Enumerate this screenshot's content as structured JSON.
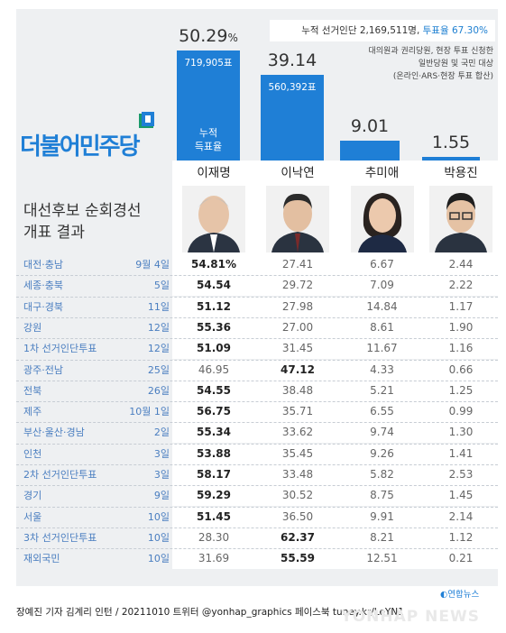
{
  "header": {
    "cumulative_voters_label": "누적 선거인단",
    "cumulative_voters_value": "2,169,511명,",
    "turnout": "투표율 67.30%",
    "note_lines": [
      "대의원과 권리당원, 현장 투표 신청한",
      "일반당원 및 국민 대상",
      "(온라인·ARS·현장 투표 합산)"
    ],
    "party_logo": "더불어민주당",
    "title_line1": "대선후보 순회경선",
    "title_line2": "개표 결과",
    "cumulative_label_1": "누적",
    "cumulative_label_2": "득표율"
  },
  "colors": {
    "accent": "#1f7fd6",
    "panel": "#eef0f2",
    "region_text": "#4a7ec0"
  },
  "chart_data": {
    "type": "bar",
    "categories": [
      "이재명",
      "이낙연",
      "추미애",
      "박용진"
    ],
    "values": [
      50.29,
      39.14,
      9.01,
      1.55
    ],
    "value_labels": [
      "50.29",
      "39.14",
      "9.01",
      "1.55"
    ],
    "pct_sign": "%",
    "votes": [
      "719,905표",
      "560,392표",
      "",
      ""
    ],
    "ylim": [
      0,
      50.29
    ]
  },
  "table": {
    "rows": [
      {
        "region": "대전·충남",
        "date": "9월 4일",
        "values": [
          "54.81%",
          "27.41",
          "6.67",
          "2.44"
        ]
      },
      {
        "region": "세종·충북",
        "date": "5일",
        "values": [
          "54.54",
          "29.72",
          "7.09",
          "2.22"
        ]
      },
      {
        "region": "대구·경북",
        "date": "11일",
        "values": [
          "51.12",
          "27.98",
          "14.84",
          "1.17"
        ]
      },
      {
        "region": "강원",
        "date": "12일",
        "values": [
          "55.36",
          "27.00",
          "8.61",
          "1.90"
        ]
      },
      {
        "region": "1차 선거인단투표",
        "date": "12일",
        "values": [
          "51.09",
          "31.45",
          "11.67",
          "1.16"
        ]
      },
      {
        "region": "광주·전남",
        "date": "25일",
        "values": [
          "46.95",
          "47.12",
          "4.33",
          "0.66"
        ]
      },
      {
        "region": "전북",
        "date": "26일",
        "values": [
          "54.55",
          "38.48",
          "5.21",
          "1.25"
        ]
      },
      {
        "region": "제주",
        "date": "10월 1일",
        "values": [
          "56.75",
          "35.71",
          "6.55",
          "0.99"
        ]
      },
      {
        "region": "부산·울산·경남",
        "date": "2일",
        "values": [
          "55.34",
          "33.62",
          "9.74",
          "1.30"
        ]
      },
      {
        "region": "인천",
        "date": "3일",
        "values": [
          "53.88",
          "35.45",
          "9.26",
          "1.41"
        ]
      },
      {
        "region": "2차 선거인단투표",
        "date": "3일",
        "values": [
          "58.17",
          "33.48",
          "5.82",
          "2.53"
        ]
      },
      {
        "region": "경기",
        "date": "9일",
        "values": [
          "59.29",
          "30.52",
          "8.75",
          "1.45"
        ]
      },
      {
        "region": "서울",
        "date": "10일",
        "values": [
          "51.45",
          "36.50",
          "9.91",
          "2.14"
        ]
      },
      {
        "region": "3차 선거인단투표",
        "date": "10일",
        "values": [
          "28.30",
          "62.37",
          "8.21",
          "1.12"
        ]
      },
      {
        "region": "재외국민",
        "date": "10일",
        "values": [
          "31.69",
          "55.59",
          "12.51",
          "0.21"
        ]
      }
    ]
  },
  "footer": {
    "credit": "장예진 기자 김계리 인턴 / 20211010  트위터 @yonhap_graphics  페이스북 tuney.kr/LeYN1",
    "agency": "연합뉴스",
    "watermark": "YONHAP NEWS"
  }
}
